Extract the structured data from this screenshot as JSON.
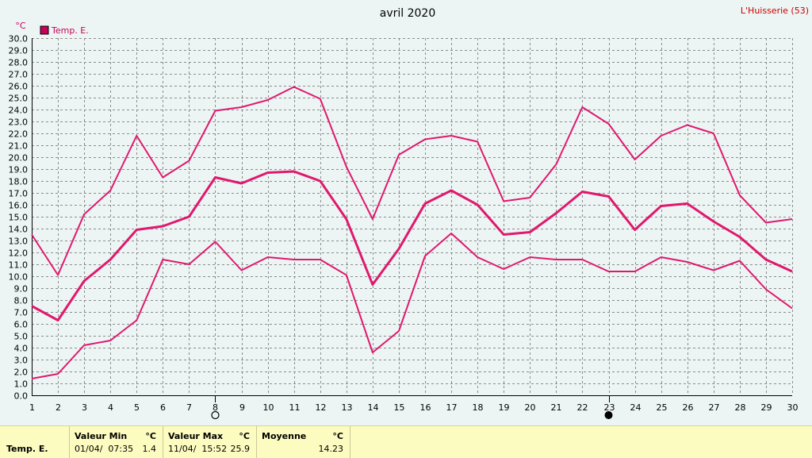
{
  "chart_data": {
    "type": "line",
    "title": "avril 2020",
    "location": "L'Huisserie (53)",
    "ylabel": "°C",
    "legend": [
      "Temp. E."
    ],
    "legend_color": "#c8005a",
    "line_color": "#e0186e",
    "ylim": [
      0,
      30
    ],
    "ystep": 1,
    "x": [
      1,
      2,
      3,
      4,
      5,
      6,
      7,
      8,
      9,
      10,
      11,
      12,
      13,
      14,
      15,
      16,
      17,
      18,
      19,
      20,
      21,
      22,
      23,
      24,
      25,
      26,
      27,
      28,
      29,
      30
    ],
    "series": [
      {
        "values": [
          13.5,
          10.1,
          15.2,
          17.2,
          21.8,
          18.3,
          19.7,
          23.9,
          24.2,
          24.8,
          25.9,
          24.9,
          19.2,
          14.8,
          20.2,
          21.5,
          21.8,
          21.3,
          16.3,
          16.6,
          19.4,
          24.2,
          22.8,
          19.8,
          21.8,
          22.7,
          22.0,
          16.8,
          14.5,
          14.8
        ]
      },
      {
        "values": [
          7.5,
          6.3,
          9.6,
          11.4,
          13.9,
          14.2,
          15.0,
          18.3,
          17.8,
          18.7,
          18.8,
          18.0,
          14.8,
          9.3,
          12.3,
          16.1,
          17.2,
          16.0,
          13.5,
          13.7,
          15.3,
          17.1,
          16.7,
          13.9,
          15.9,
          16.1,
          14.6,
          13.3,
          11.4,
          10.4
        ]
      },
      {
        "values": [
          1.4,
          1.8,
          4.2,
          4.6,
          6.3,
          11.4,
          11.0,
          12.9,
          10.5,
          11.6,
          11.4,
          11.4,
          10.1,
          3.6,
          5.4,
          11.7,
          13.6,
          11.6,
          10.6,
          11.6,
          11.4,
          11.4,
          10.4,
          10.4,
          11.6,
          11.2,
          10.5,
          11.3,
          8.9,
          7.3
        ]
      }
    ],
    "moon_markers": [
      {
        "day": 8,
        "symbol": "○"
      },
      {
        "day": 23,
        "symbol": "●"
      }
    ],
    "grid": true
  },
  "footer": {
    "row_label": "Temp. E.",
    "min_header": "Valeur Min",
    "min_unit": "°C",
    "min_date": "01/04/  07:35",
    "min_value": "1.4",
    "max_header": "Valeur Max",
    "max_unit": "°C",
    "max_date": "11/04/  15:52",
    "max_value": "25.9",
    "avg_header": "Moyenne",
    "avg_unit": "°C",
    "avg_value": "14.23"
  }
}
